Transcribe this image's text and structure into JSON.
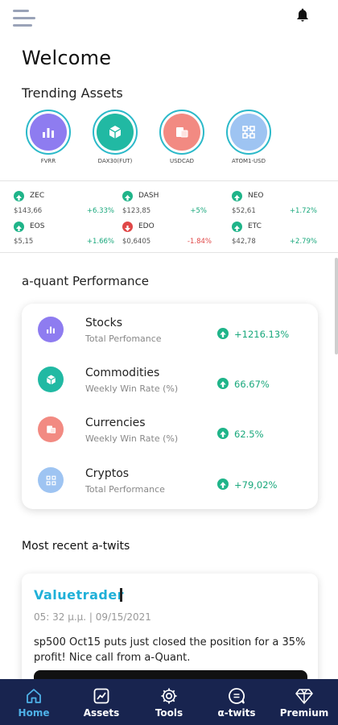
{
  "header": {
    "title": "Welcome",
    "menu_icon": "hamburger-icon",
    "notification_icon": "bell-icon"
  },
  "trending": {
    "title": "Trending Assets",
    "items": [
      {
        "label": "FVRR",
        "icon": "bar-chart-icon",
        "color": "#8e7cf0"
      },
      {
        "label": "DAX30(FUT)",
        "icon": "cube-icon",
        "color": "#21b9a3"
      },
      {
        "label": "USDCAD",
        "icon": "currency-icon",
        "color": "#f28a82"
      },
      {
        "label": "ATOM1-USD",
        "icon": "crypto-icon",
        "color": "#9ec4f2"
      }
    ]
  },
  "tickers": [
    {
      "symbol": "ZEC",
      "price": "$143,66",
      "change": "+6.33%",
      "direction": "up"
    },
    {
      "symbol": "DASH",
      "price": "$123,85",
      "change": "+5%",
      "direction": "up"
    },
    {
      "symbol": "NEO",
      "price": "$52,61",
      "change": "+1.72%",
      "direction": "up"
    },
    {
      "symbol": "EOS",
      "price": "$5,15",
      "change": "+1.66%",
      "direction": "up"
    },
    {
      "symbol": "EDO",
      "price": "$0,6405",
      "change": "-1.84%",
      "direction": "down"
    },
    {
      "symbol": "ETC",
      "price": "$42,78",
      "change": "+2.79%",
      "direction": "up"
    }
  ],
  "performance": {
    "title": "a-quant Performance",
    "rows": [
      {
        "name": "Stocks",
        "subtitle": "Total Perfomance",
        "value": "+1216.13%",
        "icon": "bar-chart-icon",
        "color": "#8e7cf0"
      },
      {
        "name": "Commodities",
        "subtitle": "Weekly Win Rate (%)",
        "value": "66.67%",
        "icon": "cube-icon",
        "color": "#21b9a3"
      },
      {
        "name": "Currencies",
        "subtitle": "Weekly Win Rate (%)",
        "value": "62.5%",
        "icon": "currency-icon",
        "color": "#f28a82"
      },
      {
        "name": "Cryptos",
        "subtitle": "Total Performance",
        "value": "+79,02%",
        "icon": "crypto-icon",
        "color": "#9ec4f2"
      }
    ]
  },
  "twits": {
    "title": "Most recent a-twits",
    "items": [
      {
        "user": "Valuetrader",
        "time": "05: 32 μ.μ. | 09/15/2021",
        "text": "sp500 Oct15 puts just closed the position for a 35% profit! Nice call from a-Quant."
      }
    ]
  },
  "nav": {
    "items": [
      {
        "label": "Home",
        "icon": "home-icon",
        "active": true
      },
      {
        "label": "Assets",
        "icon": "assets-chart-icon",
        "active": false
      },
      {
        "label": "Tools",
        "icon": "tools-gear-icon",
        "active": false
      },
      {
        "label": "α-twits",
        "icon": "twits-icon",
        "active": false
      },
      {
        "label": "Premium",
        "icon": "diamond-icon",
        "active": false
      }
    ]
  },
  "colors": {
    "accent": "#2bb9c9",
    "nav_bg": "#18244f",
    "nav_active": "#4eb1e8",
    "positive": "#19a87c",
    "negative": "#e04747"
  }
}
